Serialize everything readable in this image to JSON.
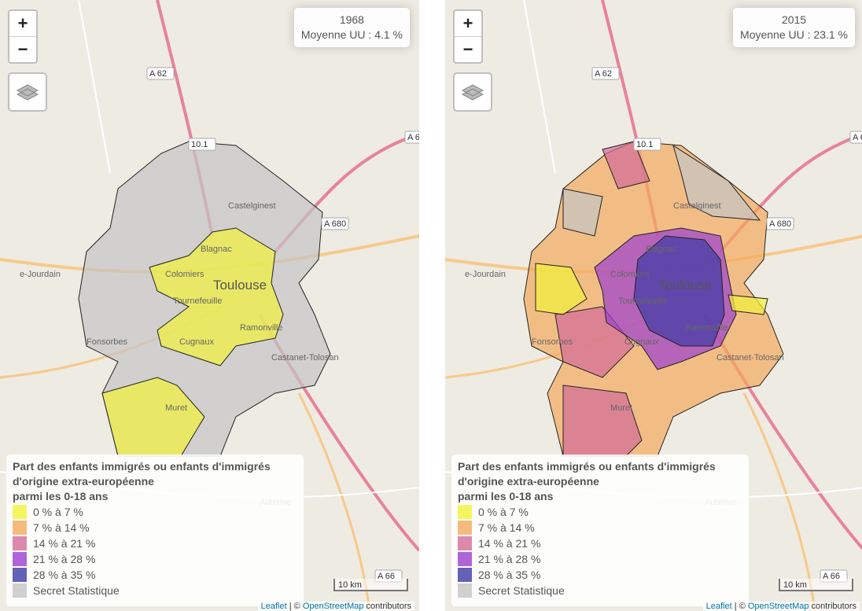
{
  "controls": {
    "zoom_in": "+",
    "zoom_out": "−"
  },
  "maps": [
    {
      "year": "1968",
      "average": "Moyenne UU : 4.1 %"
    },
    {
      "year": "2015",
      "average": "Moyenne UU : 23.1 %"
    }
  ],
  "legend": {
    "title_lines": [
      "Part des enfants immigrés ou enfants d'immigrés",
      "d'origine extra-européenne",
      "parmi les 0-18 ans"
    ],
    "items": [
      {
        "label": "0 % à 7 %",
        "color": "#f2f23a"
      },
      {
        "label": "7 % à 14 %",
        "color": "#f4a95c"
      },
      {
        "label": "14 % à 21 %",
        "color": "#d36b98"
      },
      {
        "label": "21 % à 28 %",
        "color": "#9b3fcf"
      },
      {
        "label": "28 % à 35 %",
        "color": "#3d3aa5"
      },
      {
        "label": "Secret Statistique",
        "color": "#c4c4c4"
      }
    ]
  },
  "map_labels": {
    "toulouse": "Toulouse",
    "blagnac": "Blagnac",
    "colomiers": "Colomiers",
    "tournefeuille": "Tournefeuille",
    "fonsorbes": "Fonsorbes",
    "muret": "Muret",
    "cugnaux": "Cugnaux",
    "castelginest": "Castelginest",
    "jourdain": "e-Jourdain",
    "auterive": "Auterive",
    "ramonville": "Ramonville",
    "castanet": "Castanet-Tolosan",
    "a62": "A 62",
    "a680": "A 680",
    "a6": "A 6",
    "a66": "A 66",
    "n101": "10.1"
  },
  "scale": "10 km",
  "attribution": {
    "leaflet": "Leaflet",
    "sep": " | © ",
    "osm": "OpenStreetMap",
    "rest": " contributors"
  }
}
